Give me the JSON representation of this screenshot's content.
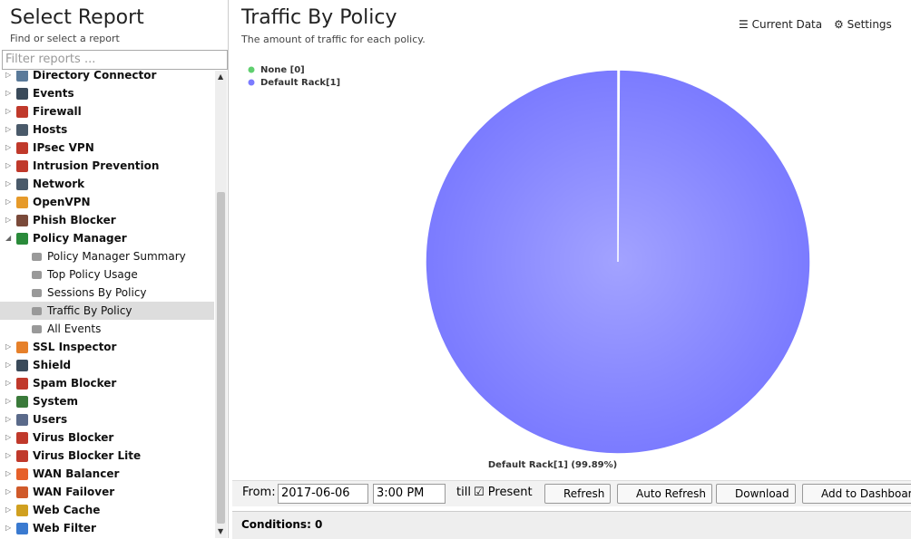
{
  "sidebar": {
    "title": "Select Report",
    "subtitle": "Find or select a report",
    "filter_placeholder": "Filter reports ...",
    "items": [
      {
        "label": "Directory Connector"
      },
      {
        "label": "Events"
      },
      {
        "label": "Firewall"
      },
      {
        "label": "Hosts"
      },
      {
        "label": "IPsec VPN"
      },
      {
        "label": "Intrusion Prevention"
      },
      {
        "label": "Network"
      },
      {
        "label": "OpenVPN"
      },
      {
        "label": "Phish Blocker"
      },
      {
        "label": "Policy Manager",
        "expanded": true,
        "children": [
          {
            "label": "Policy Manager Summary"
          },
          {
            "label": "Top Policy Usage"
          },
          {
            "label": "Sessions By Policy"
          },
          {
            "label": "Traffic By Policy",
            "selected": true
          },
          {
            "label": "All Events"
          }
        ]
      },
      {
        "label": "SSL Inspector"
      },
      {
        "label": "Shield"
      },
      {
        "label": "Spam Blocker"
      },
      {
        "label": "System"
      },
      {
        "label": "Users"
      },
      {
        "label": "Virus Blocker"
      },
      {
        "label": "Virus Blocker Lite"
      },
      {
        "label": "WAN Balancer"
      },
      {
        "label": "WAN Failover"
      },
      {
        "label": "Web Cache"
      },
      {
        "label": "Web Filter"
      }
    ]
  },
  "report": {
    "title": "Traffic By Policy",
    "subtitle": "The amount of traffic for each policy.",
    "actions": [
      "Current Data",
      "Settings"
    ]
  },
  "chart_data": {
    "type": "pie",
    "categories": [
      "None [0]",
      "Default Rack[1]"
    ],
    "values": [
      0.11,
      99.89
    ],
    "value_labels": [
      null,
      "Default Rack[1] (99.89%)"
    ],
    "colors": [
      "#5fcf6f",
      "#7b7bff"
    ],
    "legend": "top-left"
  },
  "toolbar": {
    "from_label": "From:",
    "date": "2017-06-06",
    "time": "3:00 PM",
    "till_label": "till",
    "present_label": "Present",
    "buttons": [
      "Refresh",
      "Auto Refresh",
      "Download",
      "Add to Dashboard"
    ]
  },
  "conditions": {
    "label": "Conditions: 0"
  }
}
